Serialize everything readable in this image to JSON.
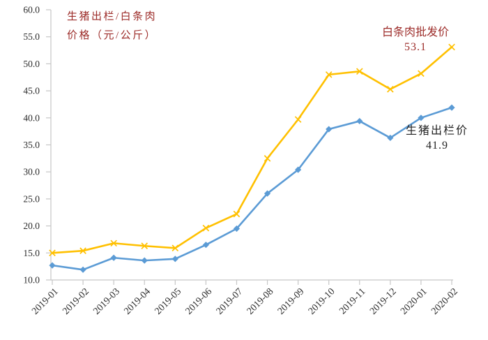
{
  "page": {
    "background": "#FFFFFF"
  },
  "title": {
    "line1": "生猪出栏/白条肉",
    "line2": "价格（元/公斤）",
    "color": "#9C2B28"
  },
  "chart_data": {
    "type": "line",
    "title": "生猪出栏/白条肉价格（元/公斤）",
    "categories": [
      "2019-01",
      "2019-02",
      "2019-03",
      "2019-04",
      "2019-05",
      "2019-06",
      "2019-07",
      "2019-08",
      "2019-09",
      "2019-10",
      "2019-11",
      "2019-12",
      "2020-01",
      "2020-02"
    ],
    "series": [
      {
        "name": "白条肉批发价",
        "color": "#FFC000",
        "marker": "x",
        "values": [
          15.0,
          15.4,
          16.8,
          16.3,
          15.9,
          19.6,
          22.2,
          32.5,
          39.7,
          48.0,
          48.6,
          45.3,
          48.2,
          53.1
        ]
      },
      {
        "name": "生猪出栏价",
        "color": "#5B9BD5",
        "marker": "diamond",
        "values": [
          12.7,
          11.9,
          14.1,
          13.6,
          13.9,
          16.5,
          19.5,
          26.0,
          30.4,
          37.9,
          39.4,
          36.3,
          40.0,
          41.9
        ]
      }
    ],
    "xlabel": "",
    "ylabel": "价格（元/公斤）",
    "ylim": [
      10.0,
      60.0
    ],
    "ytick_step": 5,
    "ytick_decimals": 1,
    "grid": false,
    "legend_position": "inline-annotations",
    "x_label_rotation": -45,
    "axis_color": "#C6C6C6",
    "tick_label_color": "#2B2B2B"
  },
  "annotations": [
    {
      "label": "白条肉批发价",
      "value": "53.1",
      "color": "#9C2B28"
    },
    {
      "label": "生猪出栏价",
      "value": "41.9",
      "color": "#222222"
    }
  ]
}
